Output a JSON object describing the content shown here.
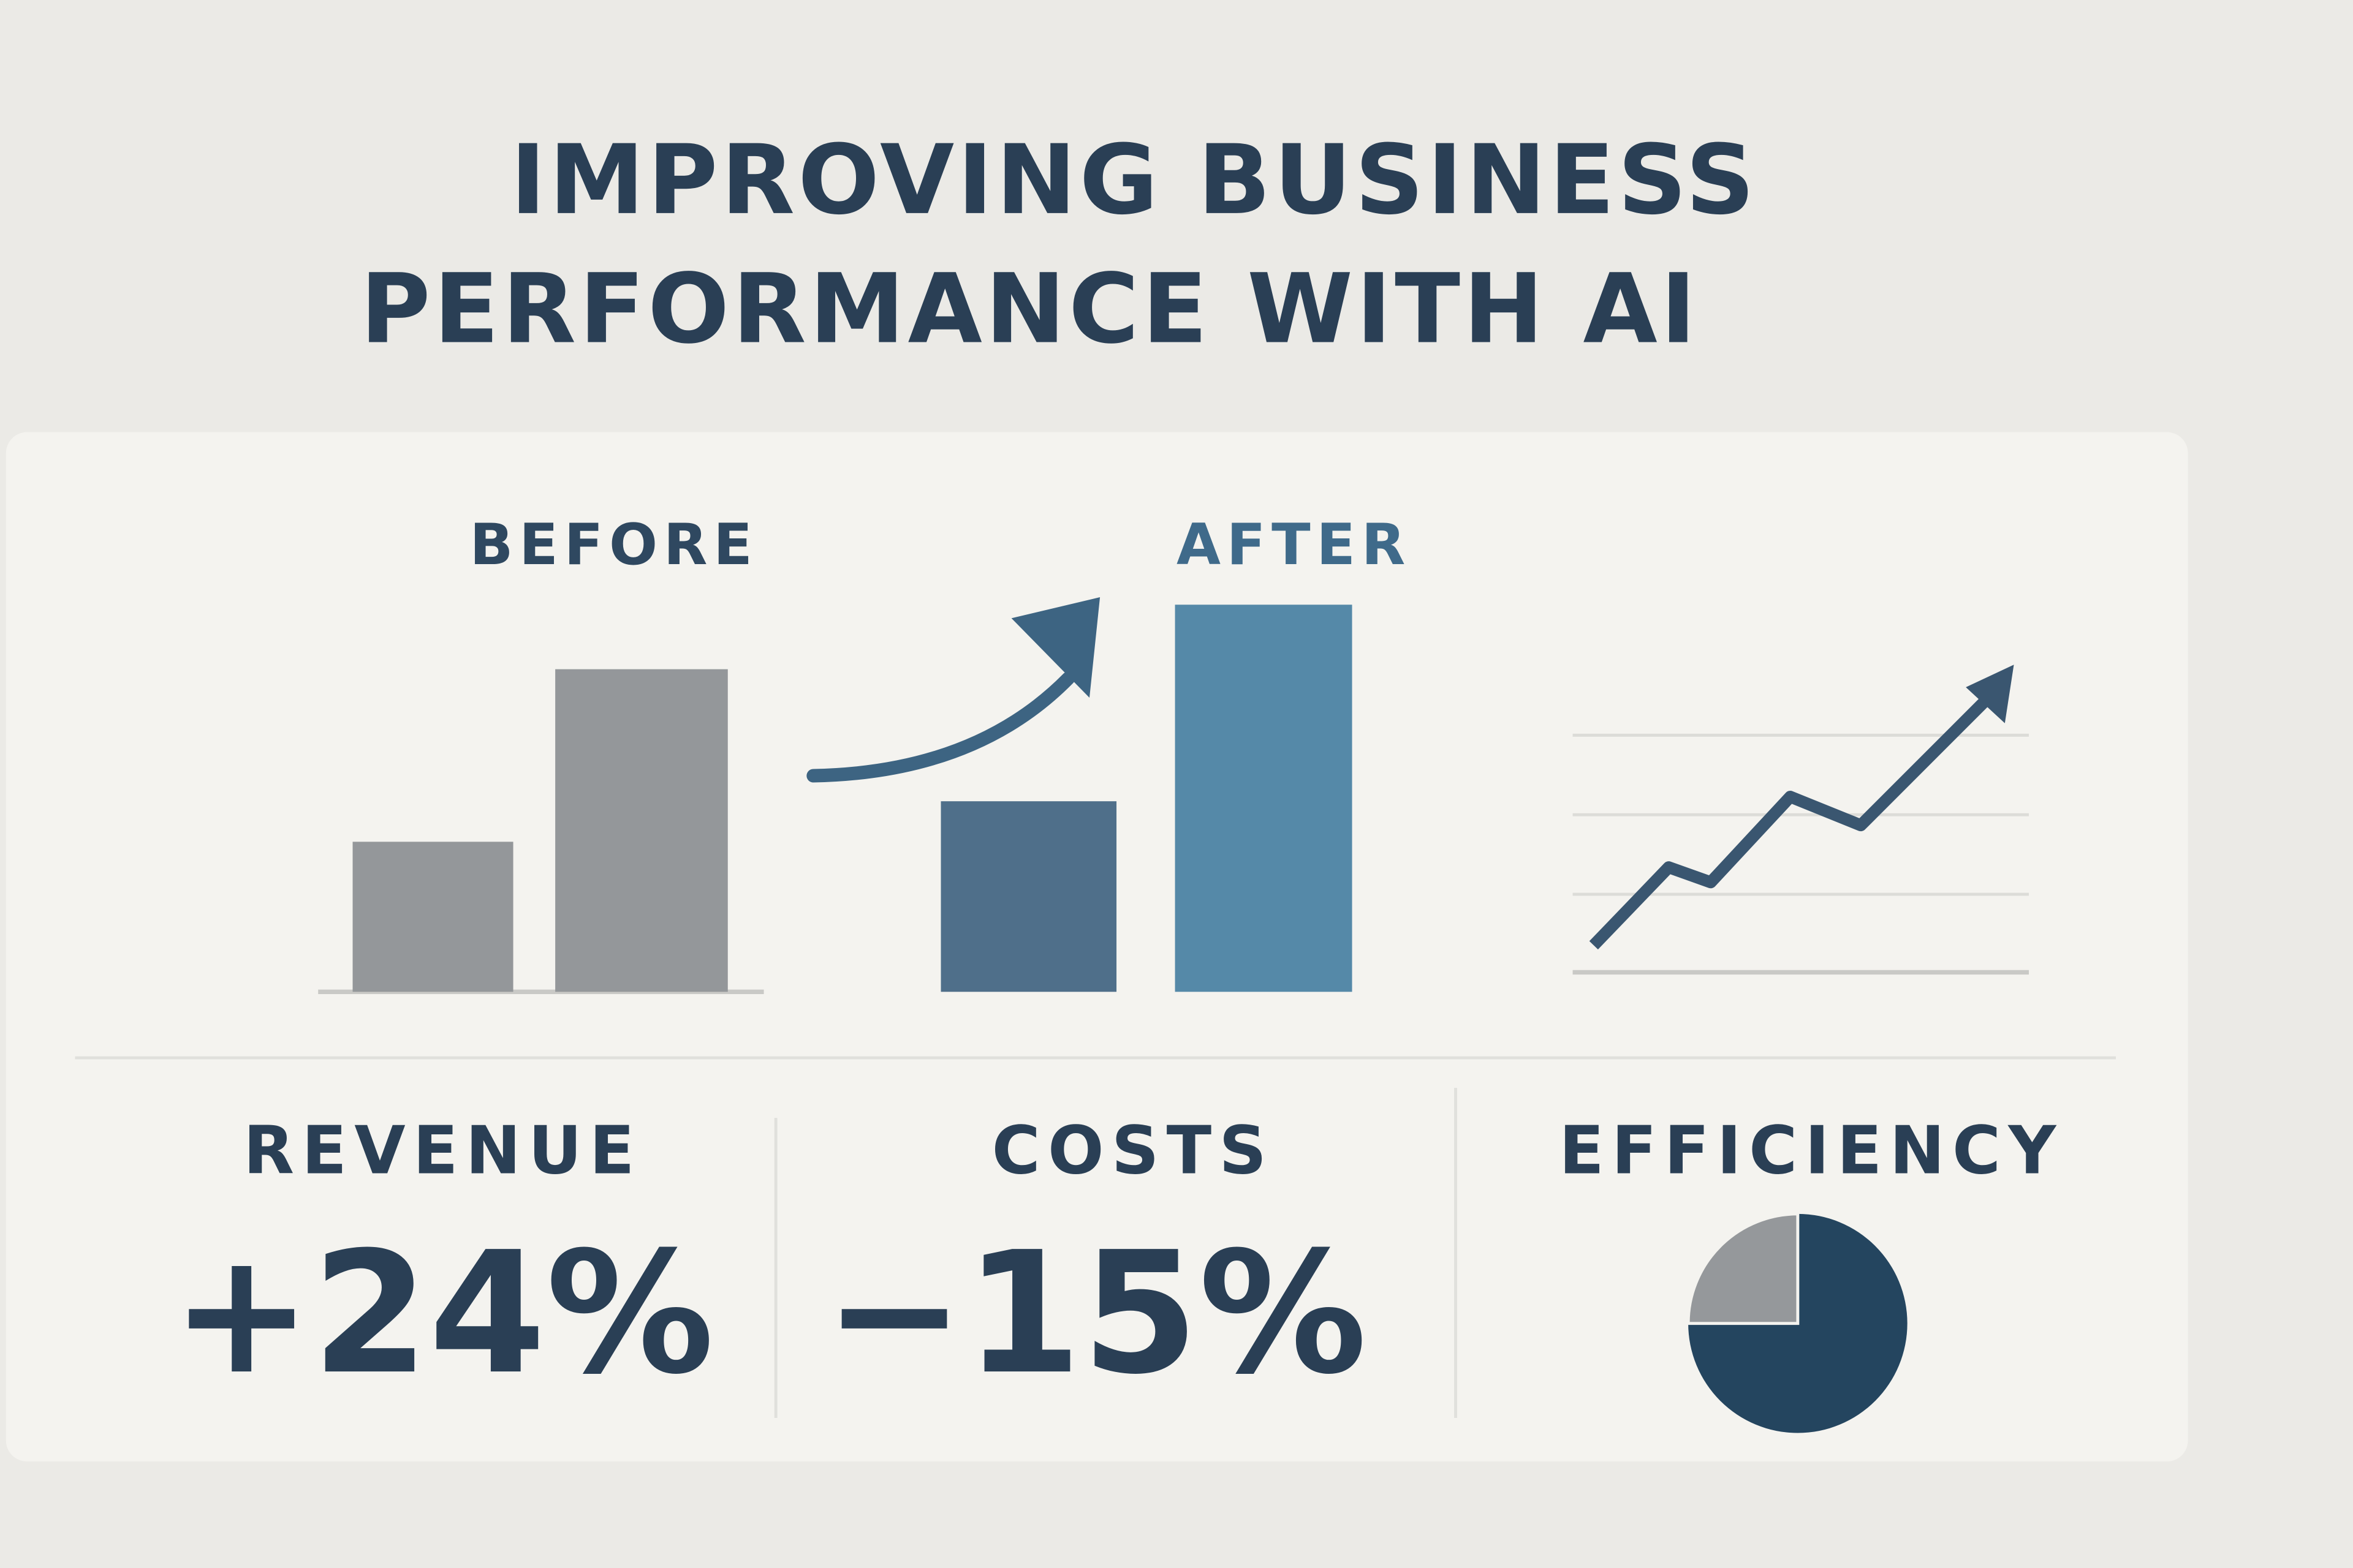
{
  "header": {
    "title_lines": [
      "IMPROVING BUSINESS",
      "PERFORMANCE WITH AI"
    ]
  },
  "comparison": {
    "before_label": "BEFORE",
    "after_label": "AFTER"
  },
  "metrics": [
    {
      "label": "REVENUE",
      "value": "+24%"
    },
    {
      "label": "COSTS",
      "value": "−15%"
    },
    {
      "label": "EFFICIENCY"
    }
  ]
}
